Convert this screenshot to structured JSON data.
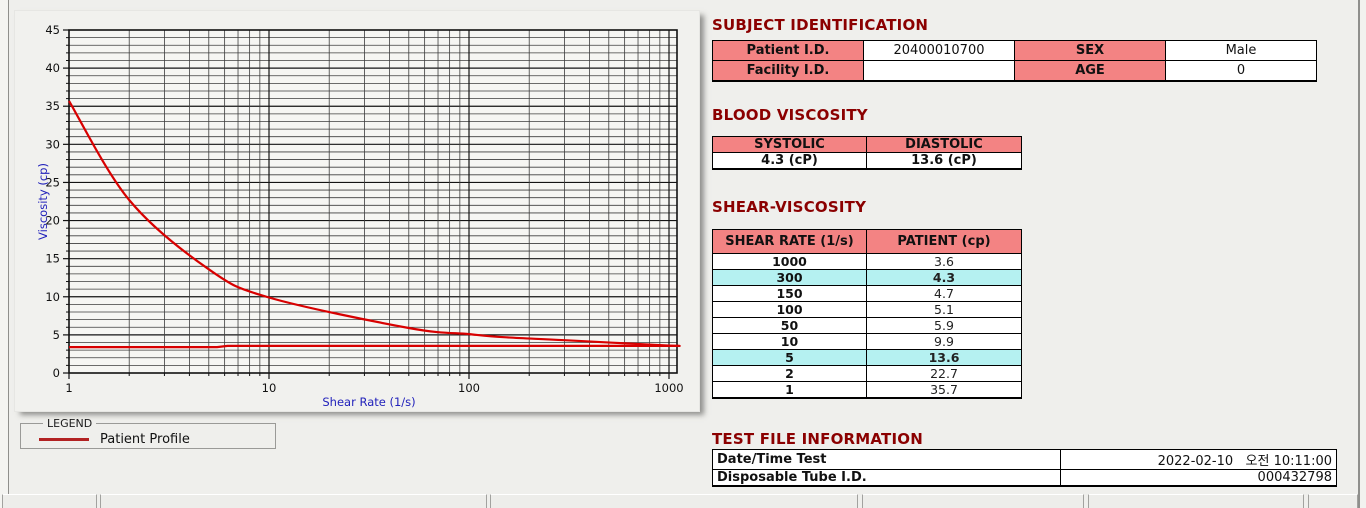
{
  "colors": {
    "accent_red": "#8b0000",
    "header_pink": "#f38383",
    "highlight_cyan": "#b5f1f1",
    "curve_red": "#d80000",
    "legend_red": "#b22222",
    "axis_label_blue": "#2222bb"
  },
  "chart_data": {
    "type": "line",
    "title": "",
    "xlabel": "Shear Rate (1/s)",
    "ylabel": "Viscosity (cp)",
    "x_scale": "log",
    "xlim": [
      1,
      1000
    ],
    "ylim": [
      0,
      45
    ],
    "x_ticks": [
      1,
      10,
      100,
      1000
    ],
    "y_ticks": [
      0,
      5,
      10,
      15,
      20,
      25,
      30,
      35,
      40,
      45
    ],
    "grid": "dense minor grid: every 1 cp horizontal, log minor vertical",
    "legend_position": "below-left groupbox",
    "series": [
      {
        "name": "Patient Profile",
        "color": "#d80000",
        "smooth": true,
        "x": [
          1,
          2,
          5,
          10,
          50,
          100,
          150,
          300,
          1000
        ],
        "y": [
          35.7,
          22.7,
          13.6,
          9.9,
          5.9,
          5.1,
          4.7,
          4.3,
          3.6
        ]
      },
      {
        "name": "baseline",
        "color": "#d80000",
        "smooth": false,
        "x": [
          1,
          5.5,
          6.2,
          1000
        ],
        "y": [
          3.4,
          3.4,
          3.55,
          3.55
        ]
      }
    ]
  },
  "legend": {
    "box_title": "LEGEND",
    "entries": [
      {
        "label": "Patient Profile",
        "color": "#b22222"
      }
    ]
  },
  "subject_identification": {
    "title": "SUBJECT IDENTIFICATION",
    "rows": [
      {
        "label1": "Patient I.D.",
        "value1": "20400010700",
        "label2": "SEX",
        "value2": "Male"
      },
      {
        "label1": "Facility I.D.",
        "value1": "",
        "label2": "AGE",
        "value2": "0"
      }
    ]
  },
  "blood_viscosity": {
    "title": "BLOOD VISCOSITY",
    "headers": [
      "SYSTOLIC",
      "DIASTOLIC"
    ],
    "values": [
      "4.3 (cP)",
      "13.6 (cP)"
    ]
  },
  "shear_viscosity": {
    "title": "SHEAR-VISCOSITY",
    "headers": [
      "SHEAR RATE (1/s)",
      "PATIENT (cp)"
    ],
    "highlight_color": "#b5f1f1",
    "rows": [
      {
        "rate": "1000",
        "value": "3.6",
        "highlight": false
      },
      {
        "rate": "300",
        "value": "4.3",
        "highlight": true
      },
      {
        "rate": "150",
        "value": "4.7",
        "highlight": false
      },
      {
        "rate": "100",
        "value": "5.1",
        "highlight": false
      },
      {
        "rate": "50",
        "value": "5.9",
        "highlight": false
      },
      {
        "rate": "10",
        "value": "9.9",
        "highlight": false
      },
      {
        "rate": "5",
        "value": "13.6",
        "highlight": true
      },
      {
        "rate": "2",
        "value": "22.7",
        "highlight": false
      },
      {
        "rate": "1",
        "value": "35.7",
        "highlight": false
      }
    ]
  },
  "test_file_information": {
    "title": "TEST FILE INFORMATION",
    "rows": [
      {
        "label": "Date/Time Test",
        "value": "2022-02-10   오전 10:11:00"
      },
      {
        "label": "Disposable Tube I.D.",
        "value": "000432798"
      }
    ]
  }
}
